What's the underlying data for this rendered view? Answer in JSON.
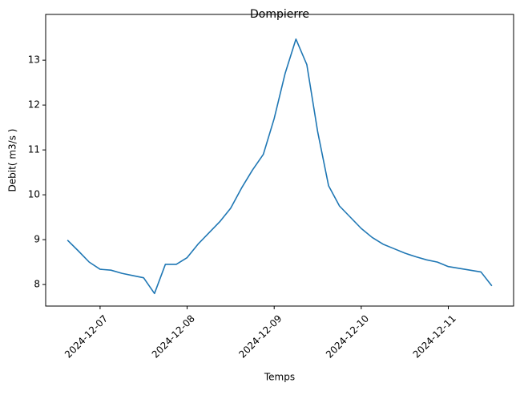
{
  "chart_data": {
    "type": "line",
    "title": "Dompierre",
    "xlabel": "Temps",
    "ylabel": "Debit( m3/s )",
    "x": [
      "2024-12-06T15:00Z",
      "2024-12-06T18:00Z",
      "2024-12-06T21:00Z",
      "2024-12-07T00:00Z",
      "2024-12-07T03:00Z",
      "2024-12-07T06:00Z",
      "2024-12-07T09:00Z",
      "2024-12-07T12:00Z",
      "2024-12-07T15:00Z",
      "2024-12-07T18:00Z",
      "2024-12-07T21:00Z",
      "2024-12-08T00:00Z",
      "2024-12-08T03:00Z",
      "2024-12-08T06:00Z",
      "2024-12-08T09:00Z",
      "2024-12-08T12:00Z",
      "2024-12-08T15:00Z",
      "2024-12-08T18:00Z",
      "2024-12-08T21:00Z",
      "2024-12-09T00:00Z",
      "2024-12-09T03:00Z",
      "2024-12-09T06:00Z",
      "2024-12-09T09:00Z",
      "2024-12-09T12:00Z",
      "2024-12-09T15:00Z",
      "2024-12-09T18:00Z",
      "2024-12-09T21:00Z",
      "2024-12-10T00:00Z",
      "2024-12-10T03:00Z",
      "2024-12-10T06:00Z",
      "2024-12-10T09:00Z",
      "2024-12-10T12:00Z",
      "2024-12-10T15:00Z",
      "2024-12-10T18:00Z",
      "2024-12-10T21:00Z",
      "2024-12-11T00:00Z",
      "2024-12-11T03:00Z",
      "2024-12-11T06:00Z",
      "2024-12-11T09:00Z",
      "2024-12-11T12:00Z"
    ],
    "series": [
      {
        "name": "Debit",
        "color": "#1f77b4",
        "values": [
          8.99,
          8.75,
          8.5,
          8.34,
          8.32,
          8.25,
          8.2,
          8.15,
          7.8,
          8.45,
          8.45,
          8.6,
          8.9,
          9.15,
          9.4,
          9.7,
          10.15,
          10.55,
          10.9,
          11.7,
          12.7,
          13.47,
          12.9,
          11.4,
          10.2,
          9.75,
          9.5,
          9.25,
          9.05,
          8.9,
          8.8,
          8.7,
          8.62,
          8.55,
          8.5,
          8.4,
          8.36,
          8.32,
          8.28,
          7.97
        ]
      }
    ],
    "xlim": [
      "2024-12-06T09:00Z",
      "2024-12-11T18:00Z"
    ],
    "xticks": [
      "2024-12-07",
      "2024-12-08",
      "2024-12-09",
      "2024-12-10",
      "2024-12-11"
    ],
    "ylim": [
      7.52,
      14.02
    ],
    "yticks": [
      8,
      9,
      10,
      11,
      12,
      13
    ],
    "grid": false
  }
}
